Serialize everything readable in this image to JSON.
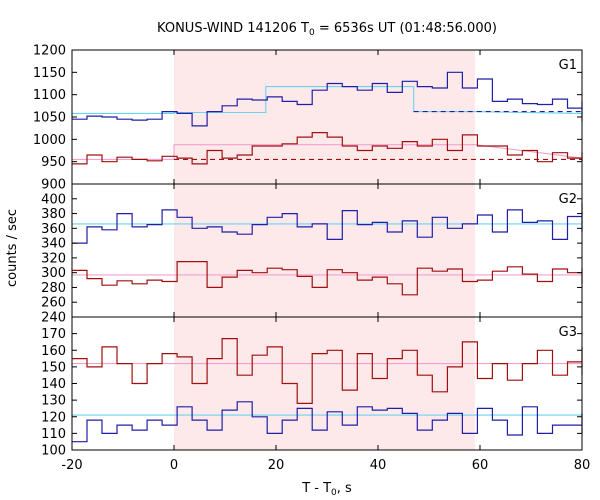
{
  "chart_data": {
    "type": "line",
    "title": "KONUS-WIND 141206 T0 = 6536s UT (01:48:56.000)",
    "title_parts": {
      "pre": "KONUS-WIND 141206 T",
      "sub": "0",
      "post": " = 6536s UT (01:48:56.000)"
    },
    "xlabel_parts": {
      "pre": "T - T",
      "sub": "0",
      "post": ", s"
    },
    "ylabel": "counts / sec",
    "xlim": [
      -20,
      80
    ],
    "xticks": [
      -20,
      0,
      20,
      40,
      60,
      80
    ],
    "shaded_region": {
      "x0": 0,
      "x1": 59,
      "color": "#fde8ea"
    },
    "colors": {
      "blue": "#1f1fa8",
      "red": "#a01010",
      "lightblue": "#6ad3f0",
      "pink": "#f5a0cf",
      "frame": "#000000"
    },
    "bin_width": 2.944,
    "panels": [
      {
        "label": "G1",
        "ylim": [
          900,
          1200
        ],
        "yticks": [
          900,
          950,
          1000,
          1050,
          1100,
          1150,
          1200
        ],
        "series": [
          {
            "color": "blue",
            "start": -20,
            "values": [
              1045,
              1052,
              1050,
              1045,
              1043,
              1045,
              1062,
              1058,
              1030,
              1062,
              1075,
              1090,
              1088,
              1095,
              1085,
              1078,
              1110,
              1125,
              1118,
              1110,
              1125,
              1105,
              1130,
              1118,
              1115,
              1150,
              1115,
              1135,
              1085,
              1090,
              1080,
              1078,
              1090,
              1070,
              1085,
              1055,
              1068,
              1060,
              1042,
              1055,
              1040,
              1045,
              1040,
              1055
            ]
          },
          {
            "color": "red",
            "start": -20,
            "values": [
              945,
              965,
              950,
              960,
              955,
              952,
              962,
              958,
              945,
              975,
              958,
              965,
              985,
              985,
              990,
              1005,
              1015,
              1005,
              985,
              975,
              985,
              980,
              995,
              985,
              1000,
              975,
              1010,
              985,
              985,
              965,
              975,
              950,
              970,
              958,
              972,
              950,
              962,
              950,
              968,
              958,
              955,
              962,
              955,
              960
            ]
          }
        ],
        "fits": [
          {
            "color": "lightblue",
            "style": "solid",
            "points": [
              [
                -20,
                1058
              ],
              [
                0,
                1058
              ],
              [
                0,
                1060
              ],
              [
                18,
                1060
              ],
              [
                18,
                1118
              ],
              [
                47,
                1118
              ],
              [
                47,
                1062
              ],
              [
                59,
                1062
              ],
              [
                80,
                1058
              ]
            ]
          },
          {
            "color": "blue",
            "style": "dashed",
            "points": [
              [
                47,
                1062
              ],
              [
                80,
                1062
              ]
            ]
          },
          {
            "color": "pink",
            "style": "solid",
            "points": [
              [
                -20,
                955
              ],
              [
                0,
                955
              ],
              [
                0,
                988
              ],
              [
                59,
                988
              ],
              [
                80,
                958
              ]
            ]
          },
          {
            "color": "red",
            "style": "dashed",
            "points": [
              [
                0,
                955
              ],
              [
                80,
                955
              ]
            ]
          }
        ]
      },
      {
        "label": "G2",
        "ylim": [
          240,
          420
        ],
        "yticks": [
          240,
          260,
          280,
          300,
          320,
          340,
          360,
          380,
          400
        ],
        "series": [
          {
            "color": "blue",
            "start": -20,
            "values": [
              340,
              362,
              358,
              380,
              362,
              365,
              385,
              375,
              360,
              362,
              355,
              352,
              365,
              375,
              380,
              362,
              366,
              345,
              384,
              365,
              368,
              355,
              370,
              348,
              375,
              360,
              366,
              378,
              355,
              385,
              368,
              370,
              345,
              376,
              368,
              385,
              370,
              378,
              385,
              395,
              382,
              355,
              372,
              360
            ]
          },
          {
            "color": "red",
            "start": -20,
            "values": [
              303,
              292,
              283,
              289,
              285,
              290,
              288,
              315,
              315,
              280,
              294,
              303,
              300,
              306,
              304,
              295,
              280,
              304,
              300,
              290,
              294,
              285,
              270,
              306,
              302,
              305,
              288,
              290,
              302,
              308,
              298,
              288,
              305,
              300,
              290,
              305,
              295,
              300,
              300,
              305,
              285,
              300,
              303,
              306
            ]
          }
        ],
        "fits": [
          {
            "color": "lightblue",
            "style": "solid",
            "points": [
              [
                -20,
                366
              ],
              [
                80,
                366
              ]
            ]
          },
          {
            "color": "pink",
            "style": "solid",
            "points": [
              [
                -20,
                297
              ],
              [
                80,
                297
              ]
            ]
          }
        ]
      },
      {
        "label": "G3",
        "ylim": [
          100,
          180
        ],
        "yticks": [
          100,
          110,
          120,
          130,
          140,
          150,
          160,
          170
        ],
        "series": [
          {
            "color": "blue",
            "start": -20,
            "values": [
              105,
              118,
              110,
              115,
              112,
              118,
              115,
              126,
              118,
              112,
              124,
              129,
              120,
              110,
              118,
              125,
              112,
              123,
              115,
              126,
              124,
              125,
              122,
              112,
              118,
              122,
              110,
              125,
              118,
              109,
              126,
              110,
              115,
              115,
              120,
              118,
              120,
              120,
              118,
              113,
              122,
              110,
              117,
              112
            ]
          },
          {
            "color": "red",
            "start": -20,
            "values": [
              155,
              150,
              162,
              152,
              140,
              152,
              158,
              156,
              140,
              155,
              167,
              145,
              157,
              162,
              140,
              128,
              158,
              160,
              136,
              158,
              143,
              155,
              160,
              145,
              135,
              150,
              165,
              143,
              152,
              142,
              152,
              160,
              145,
              153,
              145,
              160,
              155,
              148,
              155,
              158,
              146,
              145,
              162,
              145
            ]
          }
        ],
        "fits": [
          {
            "color": "lightblue",
            "style": "solid",
            "points": [
              [
                -20,
                121
              ],
              [
                80,
                121
              ]
            ]
          },
          {
            "color": "pink",
            "style": "solid",
            "points": [
              [
                -20,
                152
              ],
              [
                80,
                152
              ]
            ]
          }
        ]
      }
    ]
  }
}
